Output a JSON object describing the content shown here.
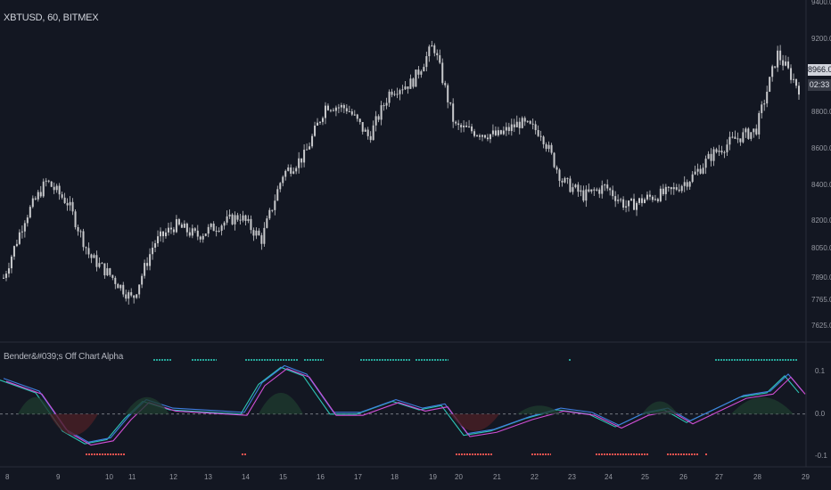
{
  "header": {
    "symbol_title": "XBTUSD, 60, BITMEX",
    "indicator_title": "Bender&#039;s Off Chart Alpha"
  },
  "price_axis": {
    "labels": [
      "9400.0",
      "9200.0",
      "8800.0",
      "8600.0",
      "8400.0",
      "8200.0",
      "8050.0",
      "7890.0",
      "7765.0",
      "7625.0"
    ],
    "current_price": "8966.0",
    "countdown": "02:33"
  },
  "indicator_axis": {
    "labels": [
      "0.1",
      "0.0",
      "-0.1"
    ]
  },
  "time_axis": {
    "labels": [
      "8",
      "9",
      "10",
      "11",
      "12",
      "13",
      "14",
      "15",
      "16",
      "17",
      "18",
      "19",
      "20",
      "21",
      "22",
      "23",
      "24",
      "25",
      "26",
      "27",
      "28",
      "29"
    ]
  },
  "colors": {
    "background": "#131722",
    "candle": "#c8c9cc",
    "line_blue": "#3f7ee0",
    "line_pink": "#d14fd6",
    "line_teal": "#2ec4b6",
    "dot_green": "#26a69a",
    "dot_red": "#ef5350",
    "fill_green": "#1e3a2e",
    "fill_red": "#4a1f26",
    "zero_line": "#9598a1"
  },
  "chart_data": {
    "type": "line",
    "price_series": [
      7890,
      8220,
      8420,
      8300,
      8010,
      7900,
      7770,
      8080,
      8180,
      8120,
      8180,
      8230,
      8100,
      8460,
      8560,
      8840,
      8820,
      8660,
      8920,
      8960,
      9170,
      8720,
      8690,
      8670,
      8740,
      8690,
      8420,
      8340,
      8390,
      8280,
      8330,
      8360,
      8440,
      8570,
      8650,
      8700,
      9120,
      8930
    ],
    "oscillator_levels": [
      0.1,
      0.0,
      -0.1
    ]
  }
}
